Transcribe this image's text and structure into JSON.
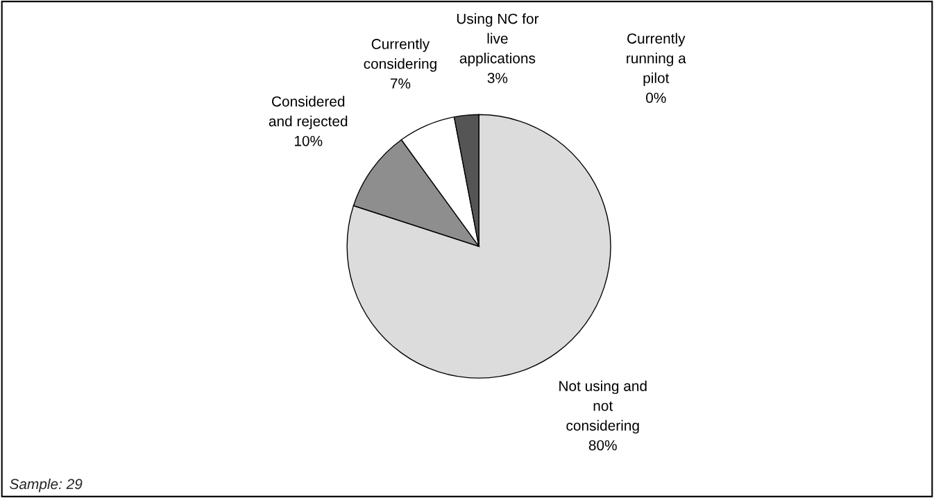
{
  "chart_data": {
    "type": "pie",
    "categories": [
      "Currently running a pilot",
      "Not using and not considering",
      "Considered and rejected",
      "Currently considering",
      "Using NC for live applications"
    ],
    "values": [
      0,
      80,
      10,
      7,
      3
    ],
    "value_labels": [
      "0%",
      "80%",
      "10%",
      "7%",
      "3%"
    ],
    "colors": [
      "#333333",
      "#dcdcdc",
      "#8e8e8e",
      "#ffffff",
      "#555555"
    ],
    "annotations": [
      "Sample: 29"
    ]
  }
}
